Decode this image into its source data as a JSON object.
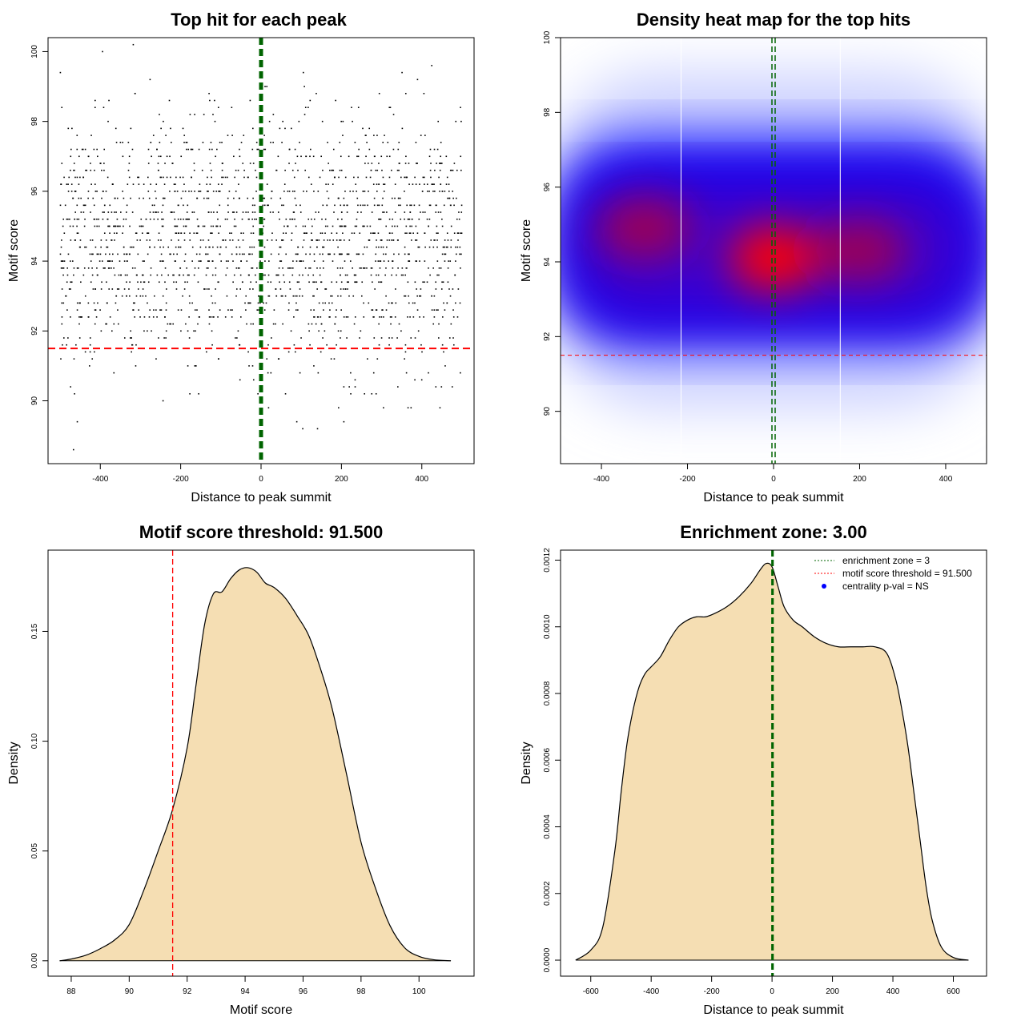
{
  "chart_data": [
    {
      "type": "scatter",
      "title": "Top hit for each peak",
      "xlabel": "Distance to peak summit",
      "ylabel": "Motif score",
      "xlim": [
        -530,
        530
      ],
      "ylim": [
        88.2,
        100.4
      ],
      "xticks": [
        -400,
        -200,
        0,
        200,
        400
      ],
      "yticks": [
        90,
        92,
        94,
        96,
        98,
        100
      ],
      "x_range": [
        -500,
        500
      ],
      "score_distribution": {
        "center": 94.5,
        "sd": 1.8
      },
      "n_points": 1900,
      "point_color": "#000000",
      "vlines": [
        {
          "x": 0,
          "color": "#006400",
          "style": "dashed"
        }
      ],
      "hlines": [
        {
          "y": 91.5,
          "color": "#ff0000",
          "style": "dashed"
        }
      ],
      "grid": false
    },
    {
      "type": "heatmap",
      "title": "Density heat map for the top hits",
      "xlabel": "Distance to peak summit",
      "ylabel": "Motif score",
      "xlim": [
        -495,
        495
      ],
      "ylim": [
        88.6,
        100
      ],
      "xticks": [
        -400,
        -200,
        0,
        200,
        400
      ],
      "yticks": [
        90,
        92,
        94,
        96,
        98,
        100
      ],
      "colors": [
        "#ffffff",
        "#0000ff",
        "#ff0000"
      ],
      "hotspots": [
        {
          "x": 0,
          "y": 94.1,
          "intensity": "high"
        },
        {
          "x": -300,
          "y": 94.9,
          "intensity": "medium"
        },
        {
          "x": 200,
          "y": 94.3,
          "intensity": "medium"
        }
      ],
      "vlines": [
        {
          "x": -215,
          "color": "#ffffff",
          "style": "solid"
        },
        {
          "x": 155,
          "color": "#ffffff",
          "style": "solid"
        },
        {
          "x": 0,
          "color": "#006400",
          "style": "dashed"
        }
      ],
      "hlines": [
        {
          "y": 91.5,
          "color": "#ff0000",
          "style": "dashed"
        }
      ]
    },
    {
      "type": "area",
      "title": "Motif score threshold: 91.500",
      "xlabel": "Motif score",
      "ylabel": "Density",
      "xlim": [
        87.2,
        101.9
      ],
      "ylim": [
        -0.007,
        0.187
      ],
      "xticks": [
        88,
        90,
        92,
        94,
        96,
        98,
        100
      ],
      "yticks": [
        0.0,
        0.05,
        0.1,
        0.15
      ],
      "ytick_labels": [
        "0.00",
        "0.05",
        "0.10",
        "0.15"
      ],
      "fill_color": "#f5deb3",
      "line_color": "#000000",
      "x": [
        87.6,
        88.0,
        88.5,
        89.0,
        89.5,
        90.0,
        90.5,
        91.0,
        91.5,
        92.0,
        92.3,
        92.6,
        92.9,
        93.2,
        93.5,
        93.8,
        94.1,
        94.4,
        94.7,
        95.0,
        95.4,
        95.8,
        96.2,
        96.6,
        97.0,
        97.5,
        98.0,
        98.5,
        99.0,
        99.5,
        100.0,
        100.5,
        101.1
      ],
      "y": [
        0.0,
        0.0008,
        0.0025,
        0.0055,
        0.0095,
        0.0165,
        0.032,
        0.05,
        0.069,
        0.097,
        0.125,
        0.153,
        0.167,
        0.168,
        0.174,
        0.178,
        0.179,
        0.177,
        0.172,
        0.17,
        0.165,
        0.157,
        0.148,
        0.133,
        0.115,
        0.085,
        0.054,
        0.033,
        0.016,
        0.006,
        0.002,
        0.0005,
        0.0
      ],
      "vlines": [
        {
          "x": 91.5,
          "color": "#ff0000",
          "style": "dashed"
        }
      ],
      "hlines": [
        {
          "y": 0,
          "color": "#000000",
          "style": "solid"
        }
      ]
    },
    {
      "type": "area",
      "title": "Enrichment zone: 3.00",
      "xlabel": "Distance to peak summit",
      "ylabel": "Density",
      "xlim": [
        -700,
        710
      ],
      "ylim": [
        -4.8e-05,
        0.00123
      ],
      "xticks": [
        -600,
        -400,
        -200,
        0,
        200,
        400,
        600
      ],
      "yticks": [
        0,
        0.0002,
        0.0004,
        0.0006,
        0.0008,
        0.001,
        0.0012
      ],
      "ytick_labels": [
        "0.0000",
        "0.0002",
        "0.0004",
        "0.0006",
        "0.0008",
        "0.0010",
        "0.0012"
      ],
      "fill_color": "#f5deb3",
      "line_color": "#000000",
      "x": [
        -650,
        -600,
        -560,
        -520,
        -500,
        -480,
        -460,
        -440,
        -420,
        -400,
        -370,
        -340,
        -310,
        -280,
        -250,
        -220,
        -190,
        -150,
        -110,
        -70,
        -40,
        -20,
        0,
        20,
        40,
        70,
        100,
        140,
        180,
        220,
        260,
        300,
        340,
        380,
        410,
        430,
        450,
        470,
        490,
        510,
        530,
        560,
        600,
        650
      ],
      "y": [
        0.0,
        3e-05,
        0.0001,
        0.00033,
        0.0005,
        0.00065,
        0.00075,
        0.00082,
        0.00086,
        0.00088,
        0.00091,
        0.00096,
        0.001,
        0.00102,
        0.00103,
        0.00103,
        0.00104,
        0.00106,
        0.00109,
        0.00113,
        0.00117,
        0.00119,
        0.00118,
        0.00112,
        0.00106,
        0.00102,
        0.001,
        0.00097,
        0.00095,
        0.00094,
        0.00094,
        0.00094,
        0.00094,
        0.00092,
        0.00084,
        0.00075,
        0.00064,
        0.0005,
        0.00036,
        0.00022,
        0.00012,
        4e-05,
        8e-06,
        0.0
      ],
      "vlines": [
        {
          "x": 0,
          "color": "#006400",
          "style": "dashed"
        },
        {
          "x": 3,
          "color": "#006400",
          "style": "dashed"
        }
      ],
      "hlines": [
        {
          "y": 0,
          "color": "#000000",
          "style": "solid"
        }
      ],
      "legend": {
        "placement": "top-right",
        "entries": [
          {
            "label": "enrichment zone = 3",
            "color": "#006400",
            "marker": "dotted-line"
          },
          {
            "label": "motif score threshold = 91.500",
            "color": "#ff0000",
            "marker": "dotted-line"
          },
          {
            "label": "centrality p-val = NS",
            "color": "#0000ff",
            "marker": "dot"
          }
        ]
      }
    }
  ]
}
